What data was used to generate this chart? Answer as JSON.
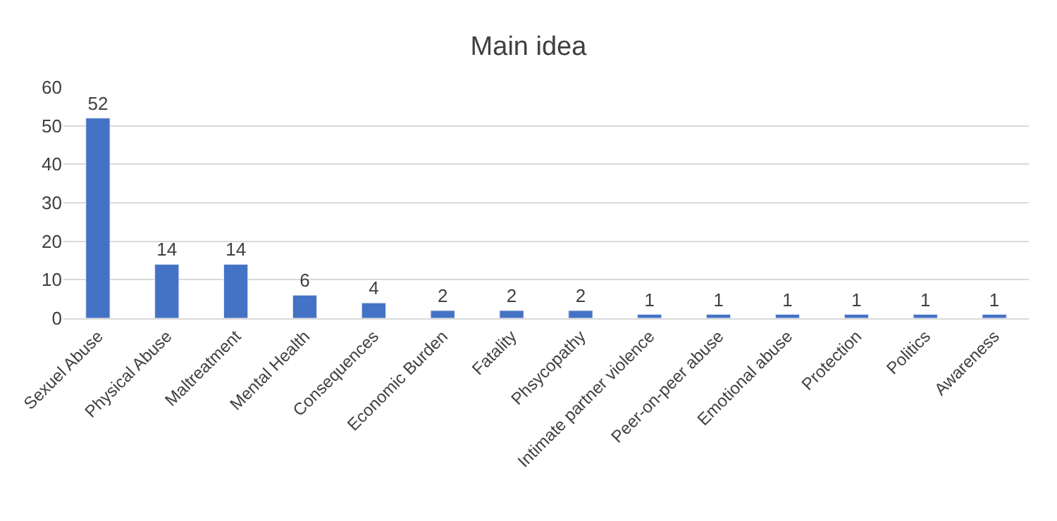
{
  "chart_data": {
    "type": "bar",
    "title": "Main idea",
    "categories": [
      "Sexuel Abuse",
      "Physical Abuse",
      "Maltreatment",
      "Mental Health",
      "Consequences",
      "Economic Burden",
      "Fatality",
      "Phsycopathy",
      "Intimate partner violence",
      "Peer-on-peer abuse",
      "Emotional abuse",
      "Protection",
      "Politics",
      "Awareness"
    ],
    "values": [
      52,
      14,
      14,
      6,
      4,
      2,
      2,
      2,
      1,
      1,
      1,
      1,
      1,
      1
    ],
    "color": "#4472c4",
    "ylim": [
      0,
      60
    ],
    "yticks": [
      0,
      10,
      20,
      30,
      40,
      50,
      60
    ],
    "grid": "y",
    "data_labels": true
  }
}
